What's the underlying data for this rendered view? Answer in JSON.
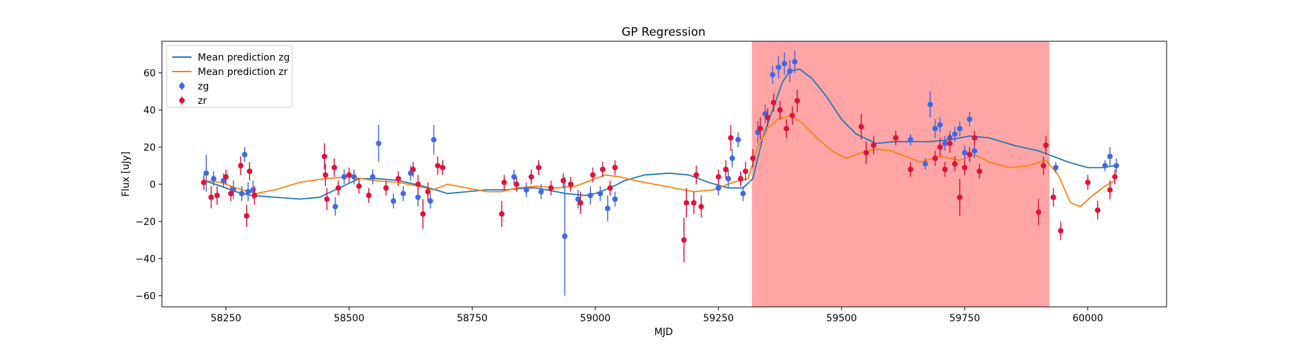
{
  "chart_data": {
    "type": "scatter",
    "title": "GP Regression",
    "xlabel": "MJD",
    "ylabel": "Flux [uJy]",
    "xlim": [
      58120,
      60160
    ],
    "ylim": [
      -66,
      77
    ],
    "xticks": [
      58250,
      58500,
      58750,
      59000,
      59250,
      59500,
      59750,
      60000
    ],
    "yticks": [
      -60,
      -40,
      -20,
      0,
      20,
      40,
      60
    ],
    "legend_position": "upper-left",
    "highlight_span": {
      "x": [
        59318,
        59922
      ],
      "color": "#ff9b9b"
    },
    "lines": [
      {
        "name": "Mean prediction zg",
        "color": "#1f77b4",
        "points": [
          [
            58205,
            2
          ],
          [
            58240,
            -1
          ],
          [
            58270,
            -4
          ],
          [
            58300,
            -6
          ],
          [
            58350,
            -7
          ],
          [
            58400,
            -8
          ],
          [
            58440,
            -7
          ],
          [
            58480,
            -2
          ],
          [
            58520,
            3
          ],
          [
            58560,
            3
          ],
          [
            58600,
            2
          ],
          [
            58650,
            -1
          ],
          [
            58700,
            -5
          ],
          [
            58740,
            -4
          ],
          [
            58780,
            -3
          ],
          [
            58820,
            -3
          ],
          [
            58860,
            -2
          ],
          [
            58880,
            -2
          ],
          [
            58900,
            -3
          ],
          [
            58940,
            -5
          ],
          [
            58980,
            -6
          ],
          [
            59000,
            -5
          ],
          [
            59030,
            -2
          ],
          [
            59060,
            2
          ],
          [
            59100,
            5
          ],
          [
            59150,
            6
          ],
          [
            59190,
            5
          ],
          [
            59230,
            1
          ],
          [
            59270,
            -2
          ],
          [
            59300,
            -2
          ],
          [
            59320,
            3
          ],
          [
            59340,
            25
          ],
          [
            59360,
            40
          ],
          [
            59380,
            55
          ],
          [
            59395,
            61
          ],
          [
            59415,
            62
          ],
          [
            59440,
            57
          ],
          [
            59470,
            47
          ],
          [
            59500,
            35
          ],
          [
            59530,
            27
          ],
          [
            59570,
            22
          ],
          [
            59610,
            23
          ],
          [
            59640,
            23
          ],
          [
            59680,
            23
          ],
          [
            59720,
            24
          ],
          [
            59760,
            26
          ],
          [
            59800,
            25
          ],
          [
            59850,
            21
          ],
          [
            59900,
            18
          ],
          [
            59930,
            15
          ],
          [
            59960,
            12
          ],
          [
            60000,
            9
          ],
          [
            60030,
            9
          ],
          [
            60055,
            10
          ]
        ]
      },
      {
        "name": "Mean prediction zr",
        "color": "#ff7f0e",
        "points": [
          [
            58205,
            2
          ],
          [
            58240,
            1
          ],
          [
            58270,
            -2
          ],
          [
            58310,
            -5
          ],
          [
            58350,
            -3
          ],
          [
            58400,
            1
          ],
          [
            58450,
            3
          ],
          [
            58500,
            4
          ],
          [
            58550,
            2
          ],
          [
            58600,
            1
          ],
          [
            58640,
            -1
          ],
          [
            58670,
            -3
          ],
          [
            58700,
            0
          ],
          [
            58740,
            -2
          ],
          [
            58780,
            -4
          ],
          [
            58810,
            -4
          ],
          [
            58840,
            -2
          ],
          [
            58880,
            -1
          ],
          [
            58920,
            -2
          ],
          [
            58960,
            -1
          ],
          [
            58990,
            2
          ],
          [
            59020,
            5
          ],
          [
            59050,
            4
          ],
          [
            59080,
            2
          ],
          [
            59120,
            0
          ],
          [
            59160,
            -2
          ],
          [
            59200,
            -4
          ],
          [
            59240,
            -3
          ],
          [
            59280,
            1
          ],
          [
            59310,
            3
          ],
          [
            59330,
            20
          ],
          [
            59350,
            30
          ],
          [
            59370,
            35
          ],
          [
            59395,
            37
          ],
          [
            59420,
            33
          ],
          [
            59450,
            25
          ],
          [
            59480,
            18
          ],
          [
            59510,
            14
          ],
          [
            59540,
            17
          ],
          [
            59570,
            19
          ],
          [
            59600,
            18
          ],
          [
            59630,
            15
          ],
          [
            59660,
            12
          ],
          [
            59700,
            15
          ],
          [
            59740,
            13
          ],
          [
            59770,
            16
          ],
          [
            59800,
            12
          ],
          [
            59840,
            9
          ],
          [
            59880,
            10
          ],
          [
            59915,
            13
          ],
          [
            59940,
            5
          ],
          [
            59965,
            -10
          ],
          [
            59985,
            -12
          ],
          [
            60010,
            -6
          ],
          [
            60035,
            -1
          ],
          [
            60055,
            2
          ]
        ]
      }
    ],
    "series": [
      {
        "name": "zg",
        "color": "#4169e1",
        "points": [
          [
            58210,
            6,
            10
          ],
          [
            58225,
            3,
            4
          ],
          [
            58245,
            2,
            4
          ],
          [
            58265,
            -3,
            5
          ],
          [
            58282,
            -5,
            4
          ],
          [
            58288,
            16,
            4
          ],
          [
            58295,
            -4,
            5
          ],
          [
            58305,
            -3,
            5
          ],
          [
            58472,
            -12,
            5
          ],
          [
            58490,
            4,
            4
          ],
          [
            58510,
            4,
            4
          ],
          [
            58548,
            4,
            4
          ],
          [
            58560,
            22,
            10
          ],
          [
            58590,
            -9,
            4
          ],
          [
            58610,
            -5,
            4
          ],
          [
            58625,
            6,
            4
          ],
          [
            58640,
            -7,
            5
          ],
          [
            58665,
            -9,
            4
          ],
          [
            58672,
            24,
            8
          ],
          [
            58835,
            4,
            4
          ],
          [
            58860,
            -3,
            4
          ],
          [
            58890,
            -4,
            4
          ],
          [
            58938,
            -28,
            32
          ],
          [
            58965,
            -8,
            5
          ],
          [
            58990,
            -6,
            5
          ],
          [
            59010,
            -5,
            4
          ],
          [
            59025,
            -13,
            7
          ],
          [
            59040,
            -8,
            4
          ],
          [
            59250,
            -2,
            4
          ],
          [
            59270,
            3,
            5
          ],
          [
            59278,
            14,
            5
          ],
          [
            59290,
            24,
            4
          ],
          [
            59300,
            -5,
            4
          ],
          [
            59330,
            28,
            6
          ],
          [
            59345,
            38,
            5
          ],
          [
            59360,
            59,
            5
          ],
          [
            59372,
            63,
            6
          ],
          [
            59384,
            65,
            6
          ],
          [
            59395,
            61,
            6
          ],
          [
            59405,
            66,
            6
          ],
          [
            59640,
            24,
            3
          ],
          [
            59670,
            11,
            3
          ],
          [
            59680,
            43,
            7
          ],
          [
            59690,
            30,
            5
          ],
          [
            59700,
            32,
            4
          ],
          [
            59710,
            22,
            4
          ],
          [
            59720,
            25,
            4
          ],
          [
            59730,
            27,
            4
          ],
          [
            59740,
            30,
            4
          ],
          [
            59750,
            17,
            4
          ],
          [
            59760,
            35,
            4
          ],
          [
            59770,
            18,
            4
          ],
          [
            59935,
            9,
            3
          ],
          [
            60035,
            10,
            3
          ],
          [
            60045,
            15,
            5
          ],
          [
            60058,
            10,
            4
          ]
        ]
      },
      {
        "name": "zr",
        "color": "#dc143c",
        "points": [
          [
            58205,
            1,
            4
          ],
          [
            58220,
            -7,
            6
          ],
          [
            58232,
            -6,
            5
          ],
          [
            58250,
            4,
            4
          ],
          [
            58260,
            -5,
            4
          ],
          [
            58280,
            10,
            5
          ],
          [
            58292,
            -17,
            6
          ],
          [
            58298,
            7,
            5
          ],
          [
            58308,
            -6,
            5
          ],
          [
            58450,
            15,
            7
          ],
          [
            58452,
            5,
            6
          ],
          [
            58455,
            -8,
            6
          ],
          [
            58470,
            9,
            5
          ],
          [
            58478,
            -2,
            4
          ],
          [
            58500,
            5,
            4
          ],
          [
            58520,
            -1,
            4
          ],
          [
            58540,
            -6,
            4
          ],
          [
            58575,
            -2,
            4
          ],
          [
            58600,
            3,
            4
          ],
          [
            58630,
            8,
            4
          ],
          [
            58640,
            0,
            5
          ],
          [
            58650,
            -16,
            8
          ],
          [
            58660,
            -4,
            5
          ],
          [
            58680,
            10,
            5
          ],
          [
            58690,
            9,
            4
          ],
          [
            58810,
            -16,
            7
          ],
          [
            58815,
            1,
            4
          ],
          [
            58840,
            0,
            4
          ],
          [
            58870,
            4,
            4
          ],
          [
            58885,
            9,
            4
          ],
          [
            58910,
            -2,
            4
          ],
          [
            58935,
            2,
            4
          ],
          [
            58950,
            0,
            4
          ],
          [
            58970,
            -10,
            6
          ],
          [
            58995,
            5,
            4
          ],
          [
            59015,
            8,
            4
          ],
          [
            59030,
            -2,
            4
          ],
          [
            59040,
            9,
            4
          ],
          [
            59180,
            -30,
            12
          ],
          [
            59185,
            -10,
            8
          ],
          [
            59200,
            -10,
            6
          ],
          [
            59205,
            5,
            5
          ],
          [
            59215,
            -12,
            6
          ],
          [
            59250,
            4,
            4
          ],
          [
            59265,
            8,
            5
          ],
          [
            59275,
            25,
            7
          ],
          [
            59295,
            3,
            4
          ],
          [
            59305,
            7,
            5
          ],
          [
            59320,
            14,
            5
          ],
          [
            59335,
            30,
            6
          ],
          [
            59350,
            36,
            5
          ],
          [
            59362,
            44,
            5
          ],
          [
            59375,
            40,
            5
          ],
          [
            59388,
            30,
            5
          ],
          [
            59400,
            37,
            5
          ],
          [
            59410,
            45,
            6
          ],
          [
            59540,
            31,
            7
          ],
          [
            59550,
            17,
            6
          ],
          [
            59565,
            21,
            5
          ],
          [
            59610,
            25,
            4
          ],
          [
            59640,
            8,
            4
          ],
          [
            59690,
            14,
            4
          ],
          [
            59700,
            20,
            5
          ],
          [
            59710,
            8,
            4
          ],
          [
            59720,
            22,
            5
          ],
          [
            59730,
            11,
            4
          ],
          [
            59740,
            -7,
            10
          ],
          [
            59750,
            9,
            4
          ],
          [
            59760,
            16,
            4
          ],
          [
            59770,
            25,
            4
          ],
          [
            59780,
            7,
            4
          ],
          [
            59900,
            -15,
            7
          ],
          [
            59910,
            10,
            5
          ],
          [
            59915,
            21,
            5
          ],
          [
            59930,
            -7,
            5
          ],
          [
            59945,
            -25,
            5
          ],
          [
            60000,
            1,
            4
          ],
          [
            60020,
            -14,
            5
          ],
          [
            60045,
            -3,
            5
          ],
          [
            60055,
            4,
            4
          ]
        ]
      }
    ]
  }
}
